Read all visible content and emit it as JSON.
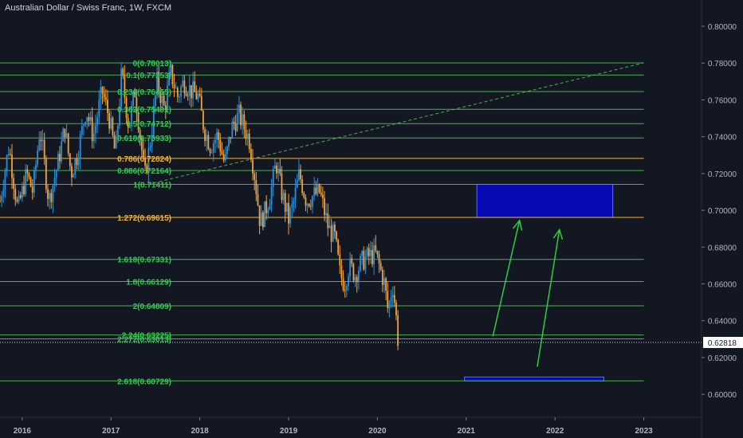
{
  "title": "Australian Dollar / Swiss Franc, 1W, FXCM",
  "colors": {
    "background": "#131722",
    "fib_line": "#4caf50",
    "fib_highlight": "#f0b43c",
    "fib_label": "#2ad04d",
    "candle_up": "#2e8fd6",
    "candle_down": "#f2a23a",
    "zone_fill": "#0a0ab4",
    "arrow": "#2ecc40",
    "axis_text": "#b2b5be",
    "price_label_bg": "#ffffff"
  },
  "chart_data": {
    "type": "candlestick",
    "symbol": "Australian Dollar / Swiss Franc",
    "interval": "1W",
    "source": "FXCM",
    "x_axis": {
      "ticks": [
        "2016",
        "2017",
        "2018",
        "2019",
        "2020",
        "2021",
        "2022",
        "2023"
      ],
      "range": [
        2015.75,
        2023.65
      ]
    },
    "y_axis": {
      "ticks": [
        "0.80000",
        "0.78000",
        "0.76000",
        "0.74000",
        "0.72000",
        "0.70000",
        "0.68000",
        "0.66000",
        "0.64000",
        "0.62000",
        "0.60000"
      ],
      "range": [
        0.5875,
        0.8143
      ]
    },
    "last_price": "0.62818",
    "price_path": [
      [
        2015.75,
        0.705
      ],
      [
        2015.85,
        0.735
      ],
      [
        2015.95,
        0.7
      ],
      [
        2016.05,
        0.72
      ],
      [
        2016.12,
        0.71
      ],
      [
        2016.2,
        0.745
      ],
      [
        2016.3,
        0.705
      ],
      [
        2016.4,
        0.725
      ],
      [
        2016.48,
        0.745
      ],
      [
        2016.55,
        0.72
      ],
      [
        2016.62,
        0.73
      ],
      [
        2016.72,
        0.755
      ],
      [
        2016.8,
        0.74
      ],
      [
        2016.9,
        0.765
      ],
      [
        2016.98,
        0.75
      ],
      [
        2017.05,
        0.73
      ],
      [
        2017.12,
        0.775
      ],
      [
        2017.2,
        0.745
      ],
      [
        2017.27,
        0.765
      ],
      [
        2017.33,
        0.74
      ],
      [
        2017.38,
        0.7176
      ],
      [
        2017.45,
        0.74
      ],
      [
        2017.52,
        0.77
      ],
      [
        2017.6,
        0.755
      ],
      [
        2017.67,
        0.775
      ],
      [
        2017.75,
        0.762
      ],
      [
        2017.82,
        0.77
      ],
      [
        2017.9,
        0.765
      ],
      [
        2017.98,
        0.762
      ],
      [
        2018.05,
        0.744
      ],
      [
        2018.12,
        0.735
      ],
      [
        2018.2,
        0.741
      ],
      [
        2018.28,
        0.725
      ],
      [
        2018.36,
        0.745
      ],
      [
        2018.44,
        0.752
      ],
      [
        2018.5,
        0.745
      ],
      [
        2018.56,
        0.738
      ],
      [
        2018.62,
        0.718
      ],
      [
        2018.68,
        0.693
      ],
      [
        2018.74,
        0.7
      ],
      [
        2018.8,
        0.71
      ],
      [
        2018.86,
        0.726
      ],
      [
        2018.92,
        0.71
      ],
      [
        2019.0,
        0.695
      ],
      [
        2019.06,
        0.705
      ],
      [
        2019.12,
        0.72
      ],
      [
        2019.2,
        0.705
      ],
      [
        2019.28,
        0.708
      ],
      [
        2019.35,
        0.71
      ],
      [
        2019.4,
        0.7
      ],
      [
        2019.45,
        0.69
      ],
      [
        2019.52,
        0.685
      ],
      [
        2019.58,
        0.665
      ],
      [
        2019.63,
        0.66
      ],
      [
        2019.68,
        0.67
      ],
      [
        2019.75,
        0.665
      ],
      [
        2019.82,
        0.672
      ],
      [
        2019.9,
        0.675
      ],
      [
        2019.98,
        0.676
      ],
      [
        2020.02,
        0.67
      ],
      [
        2020.08,
        0.66
      ],
      [
        2020.12,
        0.645
      ],
      [
        2020.17,
        0.66
      ],
      [
        2020.2,
        0.648
      ],
      [
        2020.24,
        0.625
      ]
    ],
    "fibonacci": {
      "levels": [
        {
          "label": "0(0.78013)",
          "value": 0.78013,
          "highlight": false
        },
        {
          "label": "0.1(0.77353)",
          "value": 0.77353,
          "highlight": false
        },
        {
          "label": "0.236(0.76455)",
          "value": 0.76455,
          "highlight": false
        },
        {
          "label": "0.382(0.75491)",
          "value": 0.75491,
          "highlight": false
        },
        {
          "label": "0.5(0.74712)",
          "value": 0.74712,
          "highlight": false
        },
        {
          "label": "0.618(0.73933)",
          "value": 0.73933,
          "highlight": false
        },
        {
          "label": "0.786(0.72824)",
          "value": 0.72824,
          "highlight": true
        },
        {
          "label": "0.886(0.72164)",
          "value": 0.72164,
          "highlight": false
        },
        {
          "label": "1(0.71411)",
          "value": 0.71411,
          "highlight": false
        },
        {
          "label": "1.272(0.69615)",
          "value": 0.69615,
          "highlight": true
        },
        {
          "label": "1.618(0.67331)",
          "value": 0.67331,
          "highlight": false
        },
        {
          "label": "1.8(0.66129)",
          "value": 0.66129,
          "highlight": false
        },
        {
          "label": "2(0.64809)",
          "value": 0.64809,
          "highlight": false
        },
        {
          "label": "2.24(0.63225)",
          "value": 0.63225,
          "highlight": false
        },
        {
          "label": "2.272(0.63013)",
          "value": 0.63013,
          "highlight": false
        },
        {
          "label": "2.618(0.60729)",
          "value": 0.60729,
          "highlight": false
        }
      ],
      "x_start": 2015.75,
      "x_end": 2023.0,
      "trend_line": {
        "from": [
          2017.42,
          0.71411
        ],
        "to": [
          2023.0,
          0.78013
        ]
      }
    },
    "zones": [
      {
        "x1": 2021.12,
        "x2": 2022.65,
        "y1": 0.69615,
        "y2": 0.71411
      },
      {
        "x1": 2020.98,
        "x2": 2022.55,
        "y1": 0.60729,
        "y2": 0.6094
      }
    ],
    "arrows": [
      {
        "from": [
          2021.3,
          0.6315
        ],
        "to": [
          2021.6,
          0.6945
        ]
      },
      {
        "from": [
          2021.8,
          0.615
        ],
        "to": [
          2022.05,
          0.6895
        ]
      }
    ]
  }
}
